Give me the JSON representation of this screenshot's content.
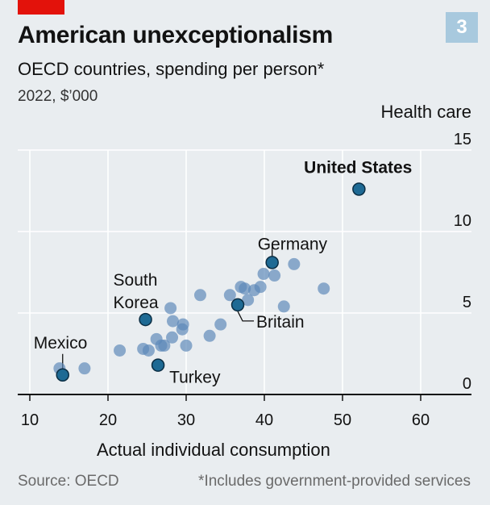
{
  "header": {
    "chart_number": "3",
    "title": "American unexceptionalism",
    "subtitle": "OECD countries, spending per person*",
    "units": "2022, $’000"
  },
  "footer": {
    "source": "Source: OECD",
    "footnote": "*Includes government-provided services"
  },
  "colors": {
    "accent_red": "#e3120b",
    "background": "#e9edf0",
    "dot": "#5b88b8",
    "highlight_dot": "#1e6a94",
    "grid": "#ffffff",
    "axis": "#121212",
    "chart_number_bg": "#a8c9de"
  },
  "chart_data": {
    "type": "scatter",
    "xlabel": "Actual individual consumption",
    "ylabel": "Health care",
    "xlim": [
      10,
      65
    ],
    "ylim": [
      0,
      15
    ],
    "xticks": [
      10,
      20,
      30,
      40,
      50,
      60
    ],
    "yticks": [
      0,
      5,
      10,
      15
    ],
    "grid": true,
    "points": [
      {
        "x": 13.8,
        "y": 1.6
      },
      {
        "x": 17.0,
        "y": 1.6
      },
      {
        "x": 21.5,
        "y": 2.7
      },
      {
        "x": 24.5,
        "y": 2.8
      },
      {
        "x": 25.2,
        "y": 2.7
      },
      {
        "x": 26.2,
        "y": 3.4
      },
      {
        "x": 26.8,
        "y": 3.0
      },
      {
        "x": 27.2,
        "y": 3.0
      },
      {
        "x": 28.2,
        "y": 3.5
      },
      {
        "x": 28.0,
        "y": 5.3
      },
      {
        "x": 28.3,
        "y": 4.5
      },
      {
        "x": 29.6,
        "y": 4.3
      },
      {
        "x": 29.5,
        "y": 4.0
      },
      {
        "x": 30.0,
        "y": 3.0
      },
      {
        "x": 31.8,
        "y": 6.1
      },
      {
        "x": 33.0,
        "y": 3.6
      },
      {
        "x": 34.4,
        "y": 4.3
      },
      {
        "x": 35.6,
        "y": 6.1
      },
      {
        "x": 37.0,
        "y": 6.6
      },
      {
        "x": 37.5,
        "y": 6.5
      },
      {
        "x": 37.9,
        "y": 5.8
      },
      {
        "x": 38.7,
        "y": 6.4
      },
      {
        "x": 39.5,
        "y": 6.6
      },
      {
        "x": 39.9,
        "y": 7.4
      },
      {
        "x": 41.3,
        "y": 7.3
      },
      {
        "x": 42.5,
        "y": 5.4
      },
      {
        "x": 43.8,
        "y": 8.0
      },
      {
        "x": 47.6,
        "y": 6.5
      }
    ],
    "highlighted": [
      {
        "name": "United States",
        "x": 52.1,
        "y": 12.6,
        "bold": true
      },
      {
        "name": "Germany",
        "x": 41.0,
        "y": 8.1
      },
      {
        "name": "South Korea",
        "x": 24.8,
        "y": 4.6
      },
      {
        "name": "Britain",
        "x": 36.6,
        "y": 5.5
      },
      {
        "name": "Mexico",
        "x": 14.2,
        "y": 1.2
      },
      {
        "name": "Turkey",
        "x": 26.4,
        "y": 1.8
      }
    ]
  }
}
